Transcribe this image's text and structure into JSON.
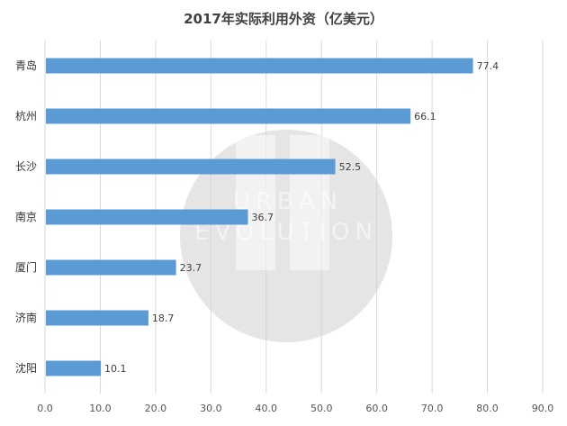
{
  "chart_data": {
    "type": "bar",
    "orientation": "horizontal",
    "title": "2017年实际利用外资（亿美元）",
    "categories": [
      "青岛",
      "杭州",
      "长沙",
      "南京",
      "厦门",
      "济南",
      "沈阳"
    ],
    "values": [
      77.4,
      66.1,
      52.5,
      36.7,
      23.7,
      18.7,
      10.1
    ],
    "data_labels": [
      "77.4",
      "66.1",
      "52.5",
      "36.7",
      "23.7",
      "18.7",
      "10.1"
    ],
    "xlim": [
      0,
      90
    ],
    "x_ticks": [
      "0.0",
      "10.0",
      "20.0",
      "30.0",
      "40.0",
      "50.0",
      "60.0",
      "70.0",
      "80.0",
      "90.0"
    ],
    "grid": true,
    "bar_color": "#5b9bd5",
    "legend": "none"
  },
  "watermark": {
    "text_line1": "URBAN",
    "text_line2": "EVOLUTION",
    "monogram": "UE"
  }
}
